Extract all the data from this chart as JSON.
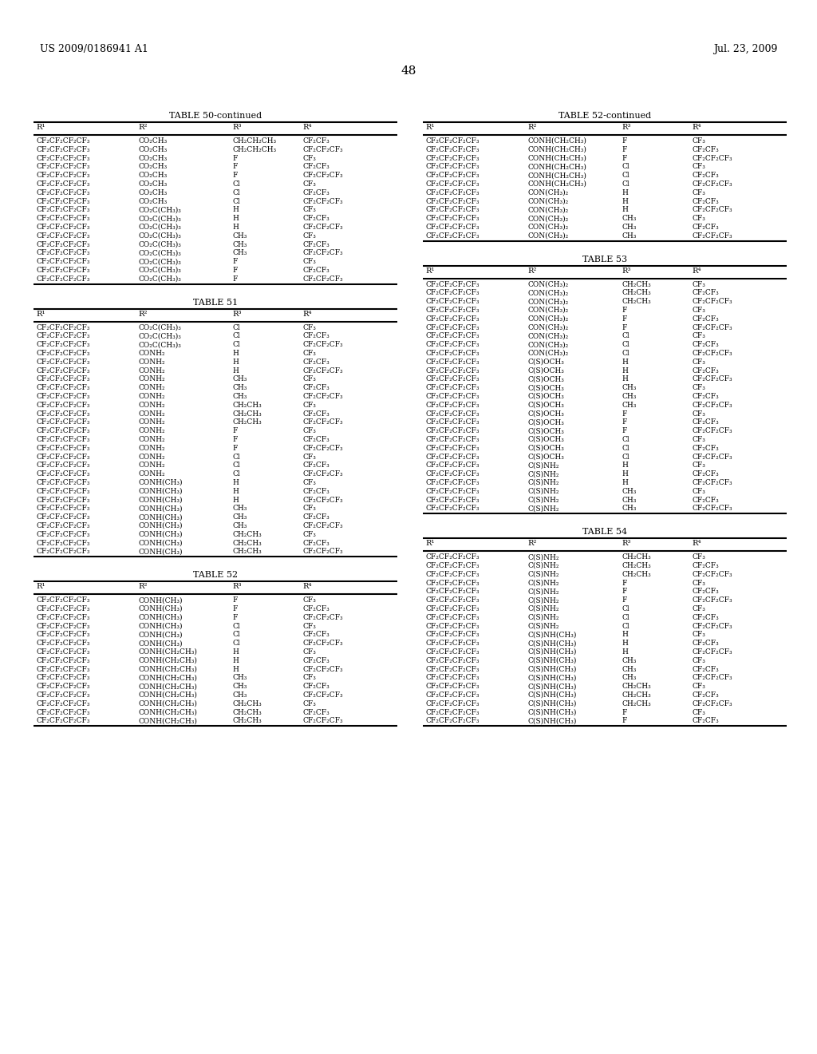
{
  "header_left": "US 2009/0186941 A1",
  "header_right": "Jul. 23, 2009",
  "page_number": "48",
  "background_color": "#ffffff",
  "text_color": "#000000",
  "tables": [
    {
      "title": "TABLE 50-continued",
      "position": "top-left",
      "columns": [
        "R¹",
        "R²",
        "R³",
        "R⁴"
      ],
      "rows": [
        [
          "CF₂CF₂CF₂CF₃",
          "CO₂CH₃",
          "CH₂CH₂CH₃",
          "CF₂CF₃"
        ],
        [
          "CF₂CF₂CF₂CF₃",
          "CO₂CH₃",
          "CH₂CH₂CH₃",
          "CF₂CF₂CF₃"
        ],
        [
          "CF₂CF₂CF₂CF₃",
          "CO₂CH₃",
          "F",
          "CF₃"
        ],
        [
          "CF₂CF₂CF₂CF₃",
          "CO₂CH₃",
          "F",
          "CF₂CF₃"
        ],
        [
          "CF₂CF₂CF₂CF₃",
          "CO₂CH₃",
          "F",
          "CF₂CF₂CF₃"
        ],
        [
          "CF₂CF₂CF₂CF₃",
          "CO₂CH₃",
          "Cl",
          "CF₃"
        ],
        [
          "CF₂CF₂CF₂CF₃",
          "CO₂CH₃",
          "Cl",
          "CF₂CF₃"
        ],
        [
          "CF₂CF₂CF₂CF₃",
          "CO₂CH₃",
          "Cl",
          "CF₂CF₂CF₃"
        ],
        [
          "CF₂CF₂CF₂CF₃",
          "CO₂C(CH₃)₃",
          "H",
          "CF₃"
        ],
        [
          "CF₂CF₂CF₂CF₃",
          "CO₂C(CH₃)₃",
          "H",
          "CF₂CF₃"
        ],
        [
          "CF₂CF₂CF₂CF₃",
          "CO₂C(CH₃)₃",
          "H",
          "CF₂CF₂CF₃"
        ],
        [
          "CF₂CF₂CF₂CF₃",
          "CO₂C(CH₃)₃",
          "CH₃",
          "CF₃"
        ],
        [
          "CF₂CF₂CF₂CF₃",
          "CO₂C(CH₃)₃",
          "CH₃",
          "CF₂CF₃"
        ],
        [
          "CF₂CF₂CF₂CF₃",
          "CO₂C(CH₃)₃",
          "CH₃",
          "CF₂CF₂CF₃"
        ],
        [
          "CF₂CF₂CF₂CF₃",
          "CO₂C(CH₃)₃",
          "F",
          "CF₃"
        ],
        [
          "CF₂CF₂CF₂CF₃",
          "CO₂C(CH₃)₃",
          "F",
          "CF₂CF₃"
        ],
        [
          "CF₂CF₂CF₂CF₃",
          "CO₂C(CH₃)₃",
          "F",
          "CF₂CF₂CF₃"
        ]
      ]
    },
    {
      "title": "TABLE 51",
      "position": "bottom-left",
      "columns": [
        "R¹",
        "R²",
        "R³",
        "R⁴"
      ],
      "rows": [
        [
          "CF₂CF₂CF₂CF₃",
          "CO₂C(CH₃)₃",
          "Cl",
          "CF₃"
        ],
        [
          "CF₂CF₂CF₂CF₃",
          "CO₂C(CH₃)₃",
          "Cl",
          "CF₂CF₃"
        ],
        [
          "CF₂CF₂CF₂CF₃",
          "CO₂C(CH₃)₃",
          "Cl",
          "CF₂CF₂CF₃"
        ],
        [
          "CF₂CF₂CF₂CF₃",
          "CONH₂",
          "H",
          "CF₃"
        ],
        [
          "CF₂CF₂CF₂CF₃",
          "CONH₂",
          "H",
          "CF₂CF₃"
        ],
        [
          "CF₂CF₂CF₂CF₃",
          "CONH₂",
          "H",
          "CF₂CF₂CF₃"
        ],
        [
          "CF₂CF₂CF₂CF₃",
          "CONH₂",
          "CH₃",
          "CF₃"
        ],
        [
          "CF₂CF₂CF₂CF₃",
          "CONH₂",
          "CH₃",
          "CF₂CF₃"
        ],
        [
          "CF₂CF₂CF₂CF₃",
          "CONH₂",
          "CH₃",
          "CF₂CF₂CF₃"
        ],
        [
          "CF₂CF₂CF₂CF₃",
          "CONH₂",
          "CH₂CH₃",
          "CF₃"
        ],
        [
          "CF₂CF₂CF₂CF₃",
          "CONH₂",
          "CH₂CH₃",
          "CF₂CF₃"
        ],
        [
          "CF₂CF₂CF₂CF₃",
          "CONH₂",
          "CH₂CH₃",
          "CF₂CF₂CF₃"
        ],
        [
          "CF₂CF₂CF₂CF₃",
          "CONH₂",
          "F",
          "CF₃"
        ],
        [
          "CF₂CF₂CF₂CF₃",
          "CONH₂",
          "F",
          "CF₂CF₃"
        ],
        [
          "CF₂CF₂CF₂CF₃",
          "CONH₂",
          "F",
          "CF₂CF₂CF₃"
        ],
        [
          "CF₂CF₂CF₂CF₃",
          "CONH₂",
          "Cl",
          "CF₃"
        ],
        [
          "CF₂CF₂CF₂CF₃",
          "CONH₂",
          "Cl",
          "CF₂CF₃"
        ],
        [
          "CF₂CF₂CF₂CF₃",
          "CONH₂",
          "Cl",
          "CF₂CF₂CF₃"
        ],
        [
          "CF₂CF₂CF₂CF₃",
          "CONH(CH₃)",
          "H",
          "CF₃"
        ],
        [
          "CF₂CF₂CF₂CF₃",
          "CONH(CH₃)",
          "H",
          "CF₂CF₃"
        ],
        [
          "CF₂CF₂CF₂CF₃",
          "CONH(CH₃)",
          "H",
          "CF₂CF₂CF₃"
        ],
        [
          "CF₂CF₂CF₂CF₃",
          "CONH(CH₃)",
          "CH₃",
          "CF₃"
        ],
        [
          "CF₂CF₂CF₂CF₃",
          "CONH(CH₃)",
          "CH₃",
          "CF₂CF₃"
        ],
        [
          "CF₂CF₂CF₂CF₃",
          "CONH(CH₃)",
          "CH₃",
          "CF₂CF₂CF₃"
        ],
        [
          "CF₂CF₂CF₂CF₃",
          "CONH(CH₃)",
          "CH₂CH₃",
          "CF₃"
        ],
        [
          "CF₂CF₂CF₂CF₃",
          "CONH(CH₃)",
          "CH₂CH₃",
          "CF₂CF₃"
        ],
        [
          "CF₂CF₂CF₂CF₃",
          "CONH(CH₃)",
          "CH₂CH₃",
          "CF₂CF₂CF₃"
        ]
      ]
    },
    {
      "title": "TABLE 52",
      "position": "bottom-left2",
      "columns": [
        "R¹",
        "R²",
        "R³",
        "R⁴"
      ],
      "rows": [
        [
          "CF₂CF₂CF₂CF₃",
          "CONH(CH₃)",
          "F",
          "CF₃"
        ],
        [
          "CF₂CF₂CF₂CF₃",
          "CONH(CH₃)",
          "F",
          "CF₂CF₃"
        ],
        [
          "CF₂CF₂CF₂CF₃",
          "CONH(CH₃)",
          "F",
          "CF₂CF₂CF₃"
        ],
        [
          "CF₂CF₂CF₂CF₃",
          "CONH(CH₃)",
          "Cl",
          "CF₃"
        ],
        [
          "CF₂CF₂CF₂CF₃",
          "CONH(CH₃)",
          "Cl",
          "CF₂CF₃"
        ],
        [
          "CF₂CF₂CF₂CF₃",
          "CONH(CH₃)",
          "Cl",
          "CF₂CF₂CF₃"
        ],
        [
          "CF₂CF₂CF₂CF₃",
          "CONH(CH₂CH₃)",
          "H",
          "CF₃"
        ],
        [
          "CF₂CF₂CF₂CF₃",
          "CONH(CH₂CH₃)",
          "H",
          "CF₂CF₃"
        ],
        [
          "CF₂CF₂CF₂CF₃",
          "CONH(CH₂CH₃)",
          "H",
          "CF₂CF₂CF₃"
        ],
        [
          "CF₂CF₂CF₂CF₃",
          "CONH(CH₂CH₃)",
          "CH₃",
          "CF₃"
        ],
        [
          "CF₂CF₂CF₂CF₃",
          "CONH(CH₂CH₃)",
          "CH₃",
          "CF₂CF₃"
        ],
        [
          "CF₂CF₂CF₂CF₃",
          "CONH(CH₂CH₃)",
          "CH₃",
          "CF₂CF₂CF₃"
        ],
        [
          "CF₂CF₂CF₂CF₃",
          "CONH(CH₂CH₃)",
          "CH₂CH₃",
          "CF₃"
        ],
        [
          "CF₂CF₂CF₂CF₃",
          "CONH(CH₂CH₃)",
          "CH₂CH₃",
          "CF₂CF₃"
        ],
        [
          "CF₂CF₂CF₂CF₃",
          "CONH(CH₂CH₃)",
          "CH₂CH₃",
          "CF₂CF₂CF₃"
        ]
      ]
    },
    {
      "title": "TABLE 52-continued",
      "position": "top-right",
      "columns": [
        "R¹",
        "R²",
        "R³",
        "R⁴"
      ],
      "rows": [
        [
          "CF₂CF₂CF₂CF₃",
          "CONH(CH₂CH₃)",
          "F",
          "CF₃"
        ],
        [
          "CF₂CF₂CF₂CF₃",
          "CONH(CH₂CH₃)",
          "F",
          "CF₂CF₃"
        ],
        [
          "CF₂CF₂CF₂CF₃",
          "CONH(CH₂CH₃)",
          "F",
          "CF₂CF₂CF₃"
        ],
        [
          "CF₂CF₂CF₂CF₃",
          "CONH(CH₂CH₃)",
          "Cl",
          "CF₃"
        ],
        [
          "CF₂CF₂CF₂CF₃",
          "CONH(CH₂CH₃)",
          "Cl",
          "CF₂CF₃"
        ],
        [
          "CF₂CF₂CF₂CF₃",
          "CONH(CH₂CH₃)",
          "Cl",
          "CF₂CF₂CF₃"
        ],
        [
          "CF₂CF₂CF₂CF₃",
          "CON(CH₃)₂",
          "H",
          "CF₃"
        ],
        [
          "CF₂CF₂CF₂CF₃",
          "CON(CH₃)₂",
          "H",
          "CF₂CF₃"
        ],
        [
          "CF₂CF₂CF₂CF₃",
          "CON(CH₃)₂",
          "H",
          "CF₂CF₂CF₃"
        ],
        [
          "CF₂CF₂CF₂CF₃",
          "CON(CH₃)₂",
          "CH₃",
          "CF₃"
        ],
        [
          "CF₂CF₂CF₂CF₃",
          "CON(CH₃)₂",
          "CH₃",
          "CF₂CF₃"
        ],
        [
          "CF₂CF₂CF₂CF₃",
          "CON(CH₃)₂",
          "CH₃",
          "CF₂CF₂CF₃"
        ]
      ]
    },
    {
      "title": "TABLE 53",
      "position": "mid-right",
      "columns": [
        "R¹",
        "R²",
        "R³",
        "R⁴"
      ],
      "rows": [
        [
          "CF₂CF₂CF₂CF₃",
          "CON(CH₃)₂",
          "CH₂CH₃",
          "CF₃"
        ],
        [
          "CF₂CF₂CF₂CF₃",
          "CON(CH₃)₂",
          "CH₂CH₃",
          "CF₂CF₃"
        ],
        [
          "CF₂CF₂CF₂CF₃",
          "CON(CH₃)₂",
          "CH₂CH₃",
          "CF₂CF₂CF₃"
        ],
        [
          "CF₂CF₂CF₂CF₃",
          "CON(CH₃)₂",
          "F",
          "CF₃"
        ],
        [
          "CF₂CF₂CF₂CF₃",
          "CON(CH₃)₂",
          "F",
          "CF₂CF₃"
        ],
        [
          "CF₂CF₂CF₂CF₃",
          "CON(CH₃)₂",
          "F",
          "CF₂CF₂CF₃"
        ],
        [
          "CF₂CF₂CF₂CF₃",
          "CON(CH₃)₂",
          "Cl",
          "CF₃"
        ],
        [
          "CF₂CF₂CF₂CF₃",
          "CON(CH₃)₂",
          "Cl",
          "CF₂CF₃"
        ],
        [
          "CF₂CF₂CF₂CF₃",
          "CON(CH₃)₂",
          "Cl",
          "CF₂CF₂CF₃"
        ],
        [
          "CF₂CF₂CF₂CF₃",
          "C(S)OCH₃",
          "H",
          "CF₃"
        ],
        [
          "CF₂CF₂CF₂CF₃",
          "C(S)OCH₃",
          "H",
          "CF₂CF₃"
        ],
        [
          "CF₂CF₂CF₂CF₃",
          "C(S)OCH₃",
          "H",
          "CF₂CF₂CF₃"
        ],
        [
          "CF₂CF₂CF₂CF₃",
          "C(S)OCH₃",
          "CH₃",
          "CF₃"
        ],
        [
          "CF₂CF₂CF₂CF₃",
          "C(S)OCH₃",
          "CH₃",
          "CF₂CF₃"
        ],
        [
          "CF₂CF₂CF₂CF₃",
          "C(S)OCH₃",
          "CH₃",
          "CF₂CF₂CF₃"
        ],
        [
          "CF₂CF₂CF₂CF₃",
          "C(S)OCH₃",
          "F",
          "CF₃"
        ],
        [
          "CF₂CF₂CF₂CF₃",
          "C(S)OCH₃",
          "F",
          "CF₂CF₃"
        ],
        [
          "CF₂CF₂CF₂CF₃",
          "C(S)OCH₃",
          "F",
          "CF₂CF₂CF₃"
        ],
        [
          "CF₂CF₂CF₂CF₃",
          "C(S)OCH₃",
          "Cl",
          "CF₃"
        ],
        [
          "CF₂CF₂CF₂CF₃",
          "C(S)OCH₃",
          "Cl",
          "CF₂CF₃"
        ],
        [
          "CF₂CF₂CF₂CF₃",
          "C(S)OCH₃",
          "Cl",
          "CF₂CF₂CF₃"
        ],
        [
          "CF₂CF₂CF₂CF₃",
          "C(S)NH₂",
          "H",
          "CF₃"
        ],
        [
          "CF₂CF₂CF₂CF₃",
          "C(S)NH₂",
          "H",
          "CF₂CF₃"
        ],
        [
          "CF₂CF₂CF₂CF₃",
          "C(S)NH₂",
          "H",
          "CF₂CF₂CF₃"
        ],
        [
          "CF₂CF₂CF₂CF₃",
          "C(S)NH₂",
          "CH₃",
          "CF₃"
        ],
        [
          "CF₂CF₂CF₂CF₃",
          "C(S)NH₂",
          "CH₃",
          "CF₂CF₃"
        ],
        [
          "CF₂CF₂CF₂CF₃",
          "C(S)NH₂",
          "CH₃",
          "CF₂CF₂CF₃"
        ]
      ]
    },
    {
      "title": "TABLE 54",
      "position": "bottom-right",
      "columns": [
        "R¹",
        "R²",
        "R³",
        "R⁴"
      ],
      "rows": [
        [
          "CF₂CF₂CF₂CF₃",
          "C(S)NH₂",
          "CH₂CH₃",
          "CF₃"
        ],
        [
          "CF₂CF₂CF₂CF₃",
          "C(S)NH₂",
          "CH₂CH₃",
          "CF₂CF₃"
        ],
        [
          "CF₂CF₂CF₂CF₃",
          "C(S)NH₂",
          "CH₂CH₃",
          "CF₂CF₂CF₃"
        ],
        [
          "CF₂CF₂CF₂CF₃",
          "C(S)NH₂",
          "F",
          "CF₃"
        ],
        [
          "CF₂CF₂CF₂CF₃",
          "C(S)NH₂",
          "F",
          "CF₂CF₃"
        ],
        [
          "CF₂CF₂CF₂CF₃",
          "C(S)NH₂",
          "F",
          "CF₂CF₂CF₃"
        ],
        [
          "CF₂CF₂CF₂CF₃",
          "C(S)NH₂",
          "Cl",
          "CF₃"
        ],
        [
          "CF₂CF₂CF₂CF₃",
          "C(S)NH₂",
          "Cl",
          "CF₂CF₃"
        ],
        [
          "CF₂CF₂CF₂CF₃",
          "C(S)NH₂",
          "Cl",
          "CF₂CF₂CF₃"
        ],
        [
          "CF₂CF₂CF₂CF₃",
          "C(S)NH(CH₃)",
          "H",
          "CF₃"
        ],
        [
          "CF₂CF₂CF₂CF₃",
          "C(S)NH(CH₃)",
          "H",
          "CF₂CF₃"
        ],
        [
          "CF₂CF₂CF₂CF₃",
          "C(S)NH(CH₃)",
          "H",
          "CF₂CF₂CF₃"
        ],
        [
          "CF₂CF₂CF₂CF₃",
          "C(S)NH(CH₃)",
          "CH₃",
          "CF₃"
        ],
        [
          "CF₂CF₂CF₂CF₃",
          "C(S)NH(CH₃)",
          "CH₃",
          "CF₂CF₃"
        ],
        [
          "CF₂CF₂CF₂CF₃",
          "C(S)NH(CH₃)",
          "CH₃",
          "CF₂CF₂CF₃"
        ],
        [
          "CF₂CF₂CF₂CF₃",
          "C(S)NH(CH₃)",
          "CH₂CH₃",
          "CF₃"
        ],
        [
          "CF₂CF₂CF₂CF₃",
          "C(S)NH(CH₃)",
          "CH₂CH₃",
          "CF₂CF₃"
        ],
        [
          "CF₂CF₂CF₂CF₃",
          "C(S)NH(CH₃)",
          "CH₂CH₃",
          "CF₂CF₂CF₃"
        ],
        [
          "CF₂CF₂CF₂CF₃",
          "C(S)NH(CH₃)",
          "F",
          "CF₃"
        ],
        [
          "CF₂CF₂CF₂CF₃",
          "C(S)NH(CH₃)",
          "F",
          "CF₂CF₃"
        ]
      ]
    }
  ]
}
